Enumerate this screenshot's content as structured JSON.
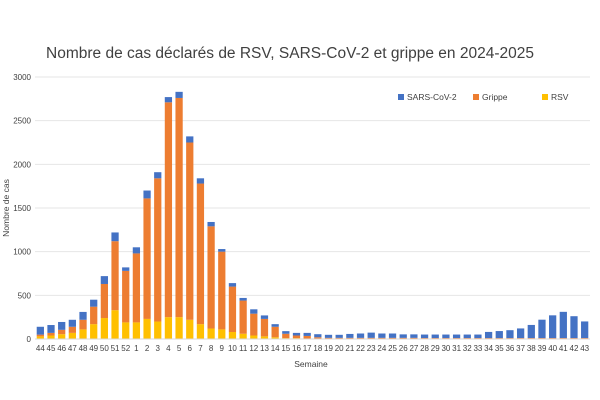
{
  "chart_data": {
    "type": "bar",
    "stacked": true,
    "title": "Nombre de cas déclarés de RSV, SARS-CoV-2 et grippe en 2024-2025",
    "xlabel": "Semaine",
    "ylabel": "Nombre de cas",
    "ylim": [
      0,
      3000
    ],
    "yticks": [
      0,
      500,
      1000,
      1500,
      2000,
      2500,
      3000
    ],
    "grid": true,
    "legend_position": "top-right",
    "categories": [
      "44",
      "45",
      "46",
      "47",
      "48",
      "49",
      "50",
      "51",
      "52",
      "1",
      "2",
      "3",
      "4",
      "5",
      "6",
      "7",
      "8",
      "9",
      "10",
      "11",
      "12",
      "13",
      "14",
      "15",
      "16",
      "17",
      "18",
      "19",
      "20",
      "21",
      "22",
      "23",
      "24",
      "25",
      "26",
      "27",
      "28",
      "29",
      "30",
      "31",
      "32",
      "33",
      "34",
      "35",
      "36",
      "37",
      "38",
      "39",
      "40",
      "41",
      "42",
      "43"
    ],
    "series": [
      {
        "name": "RSV",
        "color": "#FFC000",
        "values": [
          30,
          40,
          55,
          70,
          110,
          170,
          240,
          330,
          190,
          190,
          230,
          200,
          250,
          250,
          220,
          170,
          120,
          110,
          80,
          60,
          40,
          30,
          20,
          10,
          10,
          5,
          5,
          3,
          3,
          3,
          3,
          3,
          3,
          3,
          3,
          3,
          3,
          3,
          3,
          3,
          3,
          3,
          3,
          3,
          3,
          3,
          3,
          3,
          3,
          3,
          3,
          3
        ]
      },
      {
        "name": "Grippe",
        "color": "#ED7D31",
        "values": [
          20,
          30,
          50,
          70,
          110,
          200,
          390,
          790,
          590,
          790,
          1380,
          1640,
          2460,
          2510,
          2030,
          1610,
          1170,
          890,
          520,
          380,
          250,
          200,
          120,
          50,
          30,
          30,
          15,
          10,
          10,
          10,
          10,
          10,
          10,
          10,
          10,
          10,
          8,
          8,
          8,
          8,
          8,
          8,
          8,
          8,
          8,
          8,
          8,
          8,
          8,
          8,
          8,
          8
        ]
      },
      {
        "name": "SARS-CoV-2",
        "color": "#4472C4",
        "values": [
          90,
          90,
          90,
          80,
          90,
          80,
          90,
          100,
          40,
          70,
          90,
          70,
          60,
          70,
          70,
          60,
          50,
          30,
          40,
          30,
          50,
          40,
          30,
          30,
          30,
          35,
          35,
          35,
          35,
          45,
          50,
          60,
          50,
          50,
          40,
          40,
          40,
          40,
          40,
          40,
          40,
          40,
          70,
          80,
          90,
          110,
          150,
          210,
          260,
          300,
          250,
          190
        ]
      }
    ]
  }
}
